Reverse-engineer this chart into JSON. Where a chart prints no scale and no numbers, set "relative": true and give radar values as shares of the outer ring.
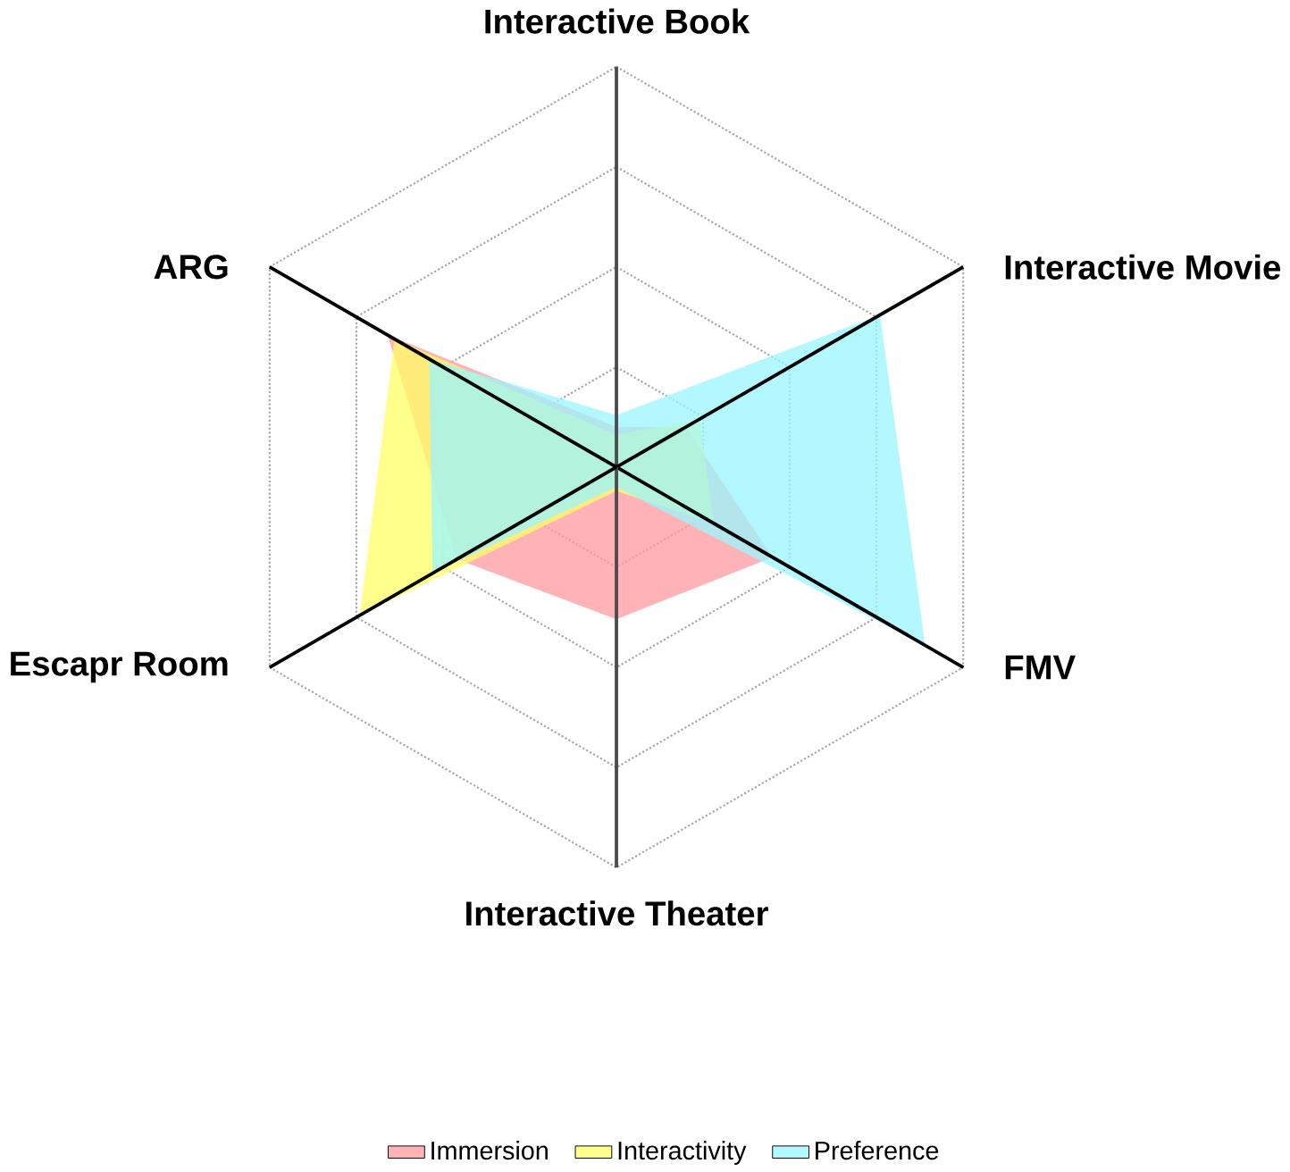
{
  "chart_data": {
    "type": "radar",
    "relative": true,
    "legend": "bottom",
    "categories": [
      "Interactive Book",
      "Interactive Movie",
      "FMV",
      "Interactive Theater",
      "Escapr Room",
      "ARG"
    ],
    "series": [
      {
        "name": "Immersion",
        "color": "#ff9a9e",
        "values": [
          0.1,
          0.2,
          0.45,
          0.38,
          0.46,
          0.66
        ]
      },
      {
        "name": "Interactivity",
        "color": "#ffff66",
        "values": [
          0.08,
          0.24,
          0.28,
          0.06,
          0.74,
          0.64
        ]
      },
      {
        "name": "Preference",
        "color": "#99f5ff",
        "values": [
          0.13,
          0.76,
          0.89,
          0.05,
          0.53,
          0.54
        ]
      }
    ]
  }
}
